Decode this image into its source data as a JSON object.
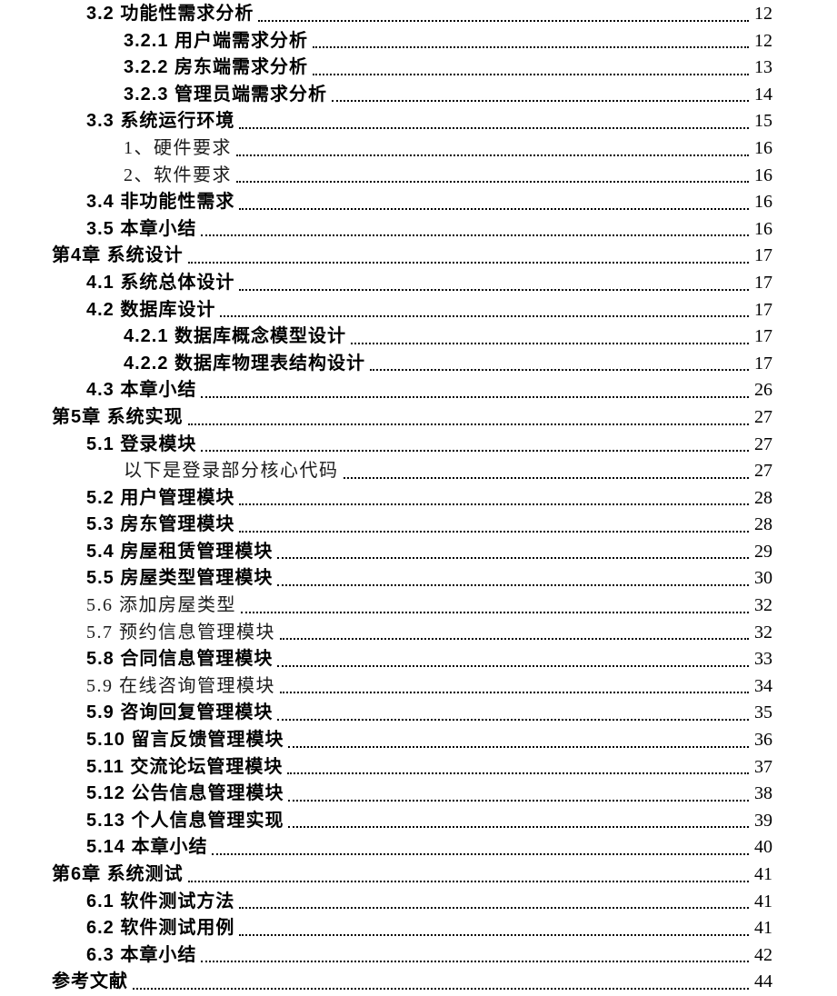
{
  "document": {
    "type": "table-of-contents-page",
    "background_color": "#ffffff",
    "text_color": "#000000",
    "toc": {
      "entries": [
        {
          "label": "3.2 功能性需求分析",
          "page": "12",
          "level": 1,
          "style": "hei"
        },
        {
          "label": "3.2.1 用户端需求分析",
          "page": "12",
          "level": 2,
          "style": "hei"
        },
        {
          "label": "3.2.2 房东端需求分析",
          "page": "13",
          "level": 2,
          "style": "hei"
        },
        {
          "label": "3.2.3 管理员端需求分析",
          "page": "14",
          "level": 2,
          "style": "hei"
        },
        {
          "label": "3.3 系统运行环境",
          "page": "15",
          "level": 1,
          "style": "hei"
        },
        {
          "label": "1、硬件要求",
          "page": "16",
          "level": 2,
          "style": "song"
        },
        {
          "label": "2、软件要求",
          "page": "16",
          "level": 2,
          "style": "song"
        },
        {
          "label": "3.4 非功能性需求",
          "page": "16",
          "level": 1,
          "style": "hei"
        },
        {
          "label": "3.5 本章小结",
          "page": "16",
          "level": 1,
          "style": "hei"
        },
        {
          "label": "第4章 系统设计",
          "page": "17",
          "level": 0,
          "style": "hei"
        },
        {
          "label": "4.1 系统总体设计",
          "page": "17",
          "level": 1,
          "style": "hei"
        },
        {
          "label": "4.2 数据库设计",
          "page": "17",
          "level": 1,
          "style": "hei"
        },
        {
          "label": "4.2.1 数据库概念模型设计",
          "page": "17",
          "level": 2,
          "style": "hei"
        },
        {
          "label": "4.2.2 数据库物理表结构设计",
          "page": "17",
          "level": 2,
          "style": "hei"
        },
        {
          "label": "4.3 本章小结",
          "page": "26",
          "level": 1,
          "style": "hei"
        },
        {
          "label": "第5章 系统实现",
          "page": "27",
          "level": 0,
          "style": "hei"
        },
        {
          "label": "5.1 登录模块",
          "page": "27",
          "level": 1,
          "style": "hei"
        },
        {
          "label": "以下是登录部分核心代码",
          "page": "27",
          "level": 2,
          "style": "song"
        },
        {
          "label": "5.2 用户管理模块",
          "page": "28",
          "level": 1,
          "style": "hei"
        },
        {
          "label": "5.3 房东管理模块",
          "page": "28",
          "level": 1,
          "style": "hei"
        },
        {
          "label": "5.4 房屋租赁管理模块",
          "page": "29",
          "level": 1,
          "style": "hei"
        },
        {
          "label": "5.5 房屋类型管理模块",
          "page": "30",
          "level": 1,
          "style": "hei"
        },
        {
          "label": "5.6 添加房屋类型",
          "page": "32",
          "level": 1,
          "style": "song"
        },
        {
          "label": "5.7 预约信息管理模块",
          "page": "32",
          "level": 1,
          "style": "song"
        },
        {
          "label": "5.8 合同信息管理模块",
          "page": "33",
          "level": 1,
          "style": "hei"
        },
        {
          "label": "5.9 在线咨询管理模块",
          "page": "34",
          "level": 1,
          "style": "song"
        },
        {
          "label": "5.9 咨询回复管理模块",
          "page": "35",
          "level": 1,
          "style": "hei"
        },
        {
          "label": "5.10 留言反馈管理模块",
          "page": "36",
          "level": 1,
          "style": "hei"
        },
        {
          "label": "5.11 交流论坛管理模块",
          "page": "37",
          "level": 1,
          "style": "hei"
        },
        {
          "label": "5.12 公告信息管理模块",
          "page": "38",
          "level": 1,
          "style": "hei"
        },
        {
          "label": "5.13 个人信息管理实现",
          "page": "39",
          "level": 1,
          "style": "hei"
        },
        {
          "label": "5.14 本章小结",
          "page": "40",
          "level": 1,
          "style": "hei"
        },
        {
          "label": "第6章 系统测试",
          "page": "41",
          "level": 0,
          "style": "hei"
        },
        {
          "label": "6.1 软件测试方法",
          "page": "41",
          "level": 1,
          "style": "hei"
        },
        {
          "label": "6.2 软件测试用例",
          "page": "41",
          "level": 1,
          "style": "hei"
        },
        {
          "label": "6.3 本章小结",
          "page": "42",
          "level": 1,
          "style": "hei"
        },
        {
          "label": "参考文献",
          "page": "44",
          "level": 0,
          "style": "hei"
        }
      ]
    }
  }
}
